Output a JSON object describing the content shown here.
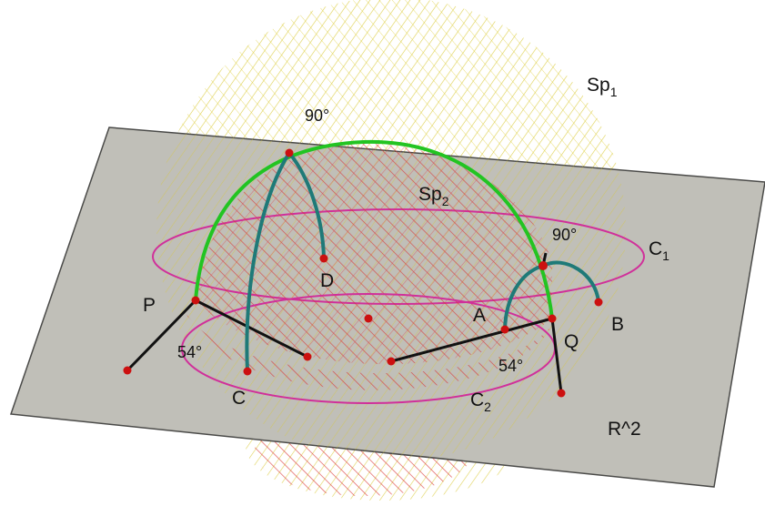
{
  "labels": {
    "sp1": {
      "base": "Sp",
      "sub": "1"
    },
    "sp2": {
      "base": "Sp",
      "sub": "2"
    },
    "c1": {
      "base": "C",
      "sub": "1"
    },
    "c2": {
      "base": "C",
      "sub": "2"
    },
    "plane": "R^2",
    "p": "P",
    "q": "Q",
    "a": "A",
    "b": "B",
    "c": "C",
    "d": "D",
    "angle_top": "90°",
    "angle_right": "90°",
    "angle_left": "54°",
    "angle_bottom": "54°"
  },
  "colors": {
    "plane_fill": "#c0bfb8",
    "plane_edge": "#4a4a48",
    "sphere1_hatch": "#d8c830",
    "sphere2_hatch": "#d83030",
    "circle": "#d0309a",
    "arc_green": "#22c422",
    "arc_teal": "#1f7a78",
    "segment": "#111111",
    "point": "#cc1010"
  }
}
